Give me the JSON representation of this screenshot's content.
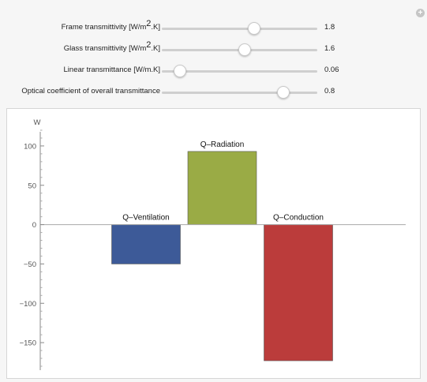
{
  "controls": [
    {
      "label_pre": "Frame transmittivity [W/m",
      "label_sup": "2",
      "label_post": ".K]",
      "value": "1.8",
      "fraction": 0.595
    },
    {
      "label_pre": "Glass transmittivity [W/m",
      "label_sup": "2",
      "label_post": ".K]",
      "value": "1.6",
      "fraction": 0.535
    },
    {
      "label_pre": "Linear transmittance [W/m.K]",
      "label_sup": "",
      "label_post": "",
      "value": "0.06",
      "fraction": 0.115
    },
    {
      "label_pre": "Optical coefficient of overall transmittance",
      "label_sup": "",
      "label_post": "",
      "value": "0.8",
      "fraction": 0.78
    }
  ],
  "icons": {
    "add": "plus-circle-icon"
  },
  "chart_data": {
    "type": "bar",
    "ylabel": "W",
    "ylim": [
      -185,
      128
    ],
    "yticks": [
      100,
      50,
      0,
      -50,
      -100,
      -150
    ],
    "ytick_labels": [
      "100",
      "50",
      "0",
      "−50",
      "−100",
      "−150"
    ],
    "categories": [
      "Q–Ventilation",
      "Q–Radiation",
      "Q–Conduction"
    ],
    "values": [
      -50,
      93,
      -173
    ],
    "colors": [
      "#3d5a98",
      "#9aab45",
      "#bb3c3b"
    ],
    "grid": false
  }
}
